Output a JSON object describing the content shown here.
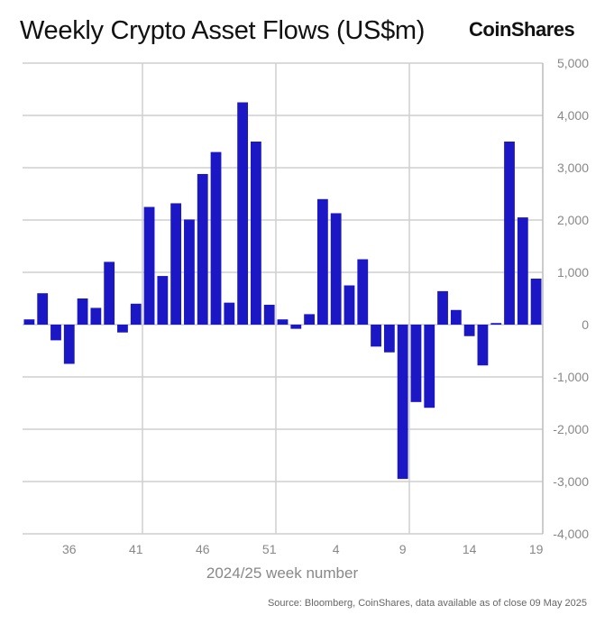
{
  "brand": "CoinShares",
  "source": "Source: Bloomberg, CoinShares, data available as of close 09 May 2025",
  "chart_data": {
    "type": "bar",
    "title": "Weekly Crypto Asset Flows (US$m)",
    "xlabel": "2024/25 week number",
    "ylabel": "",
    "ylim": [
      -4000,
      5000
    ],
    "yticks": [
      5000,
      4000,
      3000,
      2000,
      1000,
      0,
      -1000,
      -2000,
      -3000,
      -4000
    ],
    "ytick_labels": [
      "5,000",
      "4,000",
      "3,000",
      "2,000",
      "1,000",
      "0",
      "-1,000",
      "-2,000",
      "-3,000",
      "-4,000"
    ],
    "xtick_labels": [
      "36",
      "41",
      "46",
      "51",
      "4",
      "9",
      "14",
      "19"
    ],
    "categories": [
      "33",
      "34",
      "35",
      "36",
      "37",
      "38",
      "39",
      "40",
      "41",
      "42",
      "43",
      "44",
      "45",
      "46",
      "47",
      "48",
      "49",
      "50",
      "51",
      "52",
      "1",
      "2",
      "3",
      "4",
      "5",
      "6",
      "7",
      "8",
      "9",
      "10",
      "11",
      "12",
      "13",
      "14",
      "15",
      "16",
      "17",
      "18",
      "19"
    ],
    "values": [
      100,
      600,
      -300,
      -750,
      500,
      320,
      1200,
      -150,
      400,
      2250,
      930,
      2320,
      2010,
      2880,
      3300,
      420,
      4250,
      3500,
      380,
      100,
      -80,
      200,
      2400,
      2130,
      750,
      1250,
      -420,
      -530,
      -2950,
      -1480,
      -1590,
      640,
      280,
      -220,
      -780,
      30,
      3500,
      2050,
      880
    ],
    "bar_color": "#1c17c4",
    "grid": true
  }
}
